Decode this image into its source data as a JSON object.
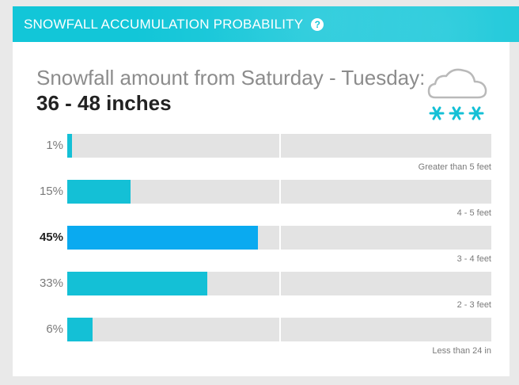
{
  "header": {
    "title": "SNOWFALL ACCUMULATION PROBABILITY",
    "help_icon_glyph": "?"
  },
  "summary": {
    "subtitle": "Snowfall amount from Saturday - Tuesday:",
    "amount": "36 - 48 inches",
    "icon": "cloud-snow-icon"
  },
  "chart_data": {
    "type": "bar",
    "categories": [
      "Greater than 5 feet",
      "4 - 5 feet",
      "3 - 4 feet",
      "2 - 3 feet",
      "Less than 24 in"
    ],
    "values": [
      1,
      15,
      45,
      33,
      6
    ],
    "value_labels": [
      "1%",
      "15%",
      "45%",
      "33%",
      "6%"
    ],
    "highlight_index": 2,
    "xlim": [
      0,
      100
    ],
    "colors": {
      "default": "#14c0d6",
      "highlight": "#0aaaf0",
      "track": "#e3e3e3"
    }
  },
  "colors": {
    "accent": "#12c6d8"
  }
}
